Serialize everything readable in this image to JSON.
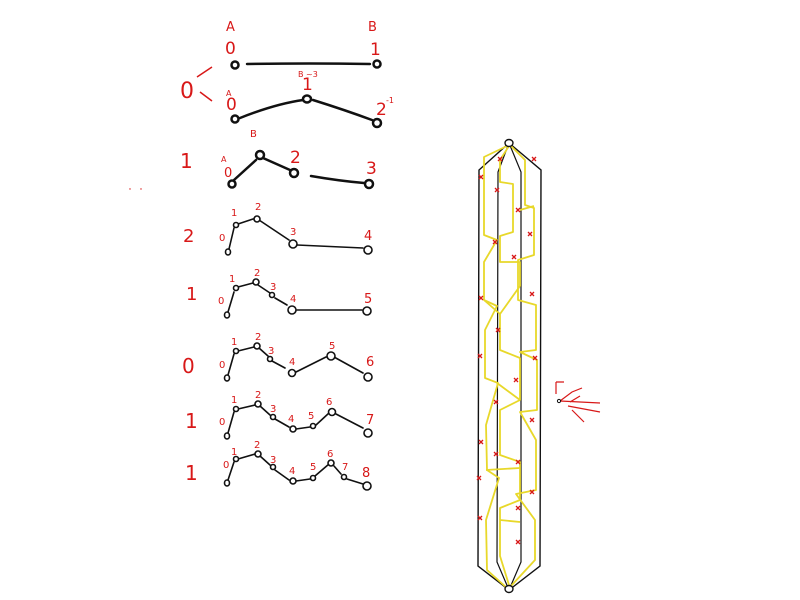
{
  "colors": {
    "ink": "#111111",
    "annotation": "#d81818",
    "highlight": "#e8d82a"
  },
  "header": {
    "left": "A",
    "right": "B"
  },
  "rows": [
    {
      "mark": "0",
      "labels": [
        {
          "t": "0"
        },
        {
          "t": "1"
        }
      ]
    },
    {
      "mark": "",
      "labels": [
        {
          "t": "A"
        },
        {
          "t": "0"
        },
        {
          "t": "1"
        },
        {
          "t": "B ~3"
        },
        {
          "t": "2"
        },
        {
          "t": "-1"
        }
      ]
    },
    {
      "mark": "1",
      "labels": [
        {
          "t": "B"
        },
        {
          "t": "A"
        },
        {
          "t": "0"
        },
        {
          "t": "2"
        },
        {
          "t": "3"
        }
      ]
    },
    {
      "mark": "2",
      "labels": [
        {
          "t": "0"
        },
        {
          "t": "1"
        },
        {
          "t": "2"
        },
        {
          "t": "3"
        },
        {
          "t": "4"
        }
      ]
    },
    {
      "mark": "1",
      "labels": [
        {
          "t": "0"
        },
        {
          "t": "1"
        },
        {
          "t": "2"
        },
        {
          "t": "3"
        },
        {
          "t": "4"
        },
        {
          "t": "5"
        }
      ]
    },
    {
      "mark": "0",
      "labels": [
        {
          "t": "0"
        },
        {
          "t": "1"
        },
        {
          "t": "2"
        },
        {
          "t": "3"
        },
        {
          "t": "4"
        },
        {
          "t": "5"
        },
        {
          "t": "6"
        }
      ]
    },
    {
      "mark": "1",
      "labels": [
        {
          "t": "0"
        },
        {
          "t": "1"
        },
        {
          "t": "2"
        },
        {
          "t": "3"
        },
        {
          "t": "4"
        },
        {
          "t": "5"
        },
        {
          "t": "6"
        },
        {
          "t": "7"
        }
      ]
    },
    {
      "mark": "1",
      "labels": [
        {
          "t": "0"
        },
        {
          "t": "1"
        },
        {
          "t": "2"
        },
        {
          "t": "3"
        },
        {
          "t": "4"
        },
        {
          "t": "5"
        },
        {
          "t": "6"
        },
        {
          "t": "7"
        },
        {
          "t": "8"
        }
      ]
    }
  ]
}
